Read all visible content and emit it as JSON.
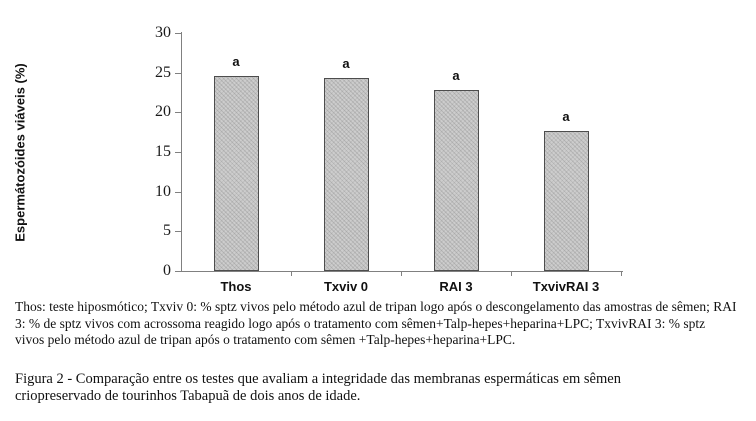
{
  "chart_data": {
    "type": "bar",
    "title": "",
    "categories": [
      "Thos",
      "Txviv 0",
      "RAI 3",
      "TxvivRAI 3"
    ],
    "values": [
      24.6,
      24.3,
      22.8,
      17.7
    ],
    "bar_significance_labels": [
      "a",
      "a",
      "a",
      "a"
    ],
    "xlabel": "",
    "ylabel": "Espermátozóides viáveis (%)",
    "ylim": [
      0,
      30
    ],
    "yticks": [
      0,
      5,
      10,
      15,
      20,
      25,
      30
    ],
    "grid": false,
    "legend": "none",
    "bar_fill_color": "#cdcdcd",
    "bar_border_color": "#4d4d4d",
    "axis_color": "#808080"
  },
  "notes": {
    "lines": [
      "Thos: teste hiposmótico; Txviv 0: % sptz vivos pelo método azul de tripan logo após o descongelamento das amostras de sêmen; RAI",
      "3: % de sptz vivos com acrossoma reagido logo após o tratamento com sêmen+Talp-hepes+heparina+LPC; TxvivRAI 3: % sptz",
      "vivos pelo método azul de tripan após o tratamento com sêmen +Talp-hepes+heparina+LPC."
    ]
  },
  "caption": {
    "lines": [
      "Figura 2 - Comparação entre os testes que avaliam a integridade das membranas espermáticas em sêmen",
      "criopreservado de tourinhos Tabapuã de dois anos de idade."
    ]
  }
}
